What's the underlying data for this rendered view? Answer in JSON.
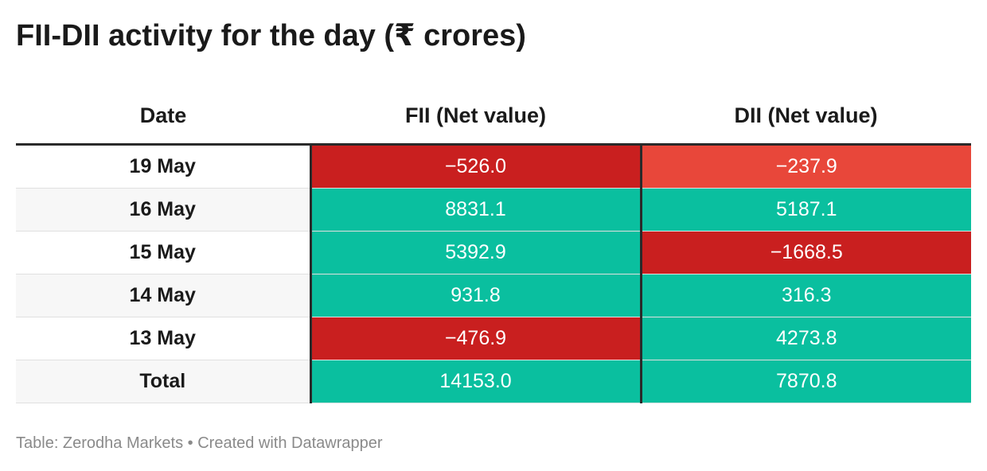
{
  "title": "FII-DII activity for the day (₹ crores)",
  "footer": "Table: Zerodha Markets • Created with Datawrapper",
  "colors": {
    "positive": "#0abf9f",
    "negative_strong": "#c91f1f",
    "negative_light": "#e8473a"
  },
  "chart_data": {
    "type": "table",
    "title": "FII-DII activity for the day (₹ crores)",
    "columns": [
      "Date",
      "FII (Net value)",
      "DII (Net value)"
    ],
    "rows": [
      {
        "date": "19 May",
        "fii": "−526.0",
        "dii": "−237.9",
        "fii_value": -526.0,
        "dii_value": -237.9
      },
      {
        "date": "16 May",
        "fii": "8831.1",
        "dii": "5187.1",
        "fii_value": 8831.1,
        "dii_value": 5187.1
      },
      {
        "date": "15 May",
        "fii": "5392.9",
        "dii": "−1668.5",
        "fii_value": 5392.9,
        "dii_value": -1668.5
      },
      {
        "date": "14 May",
        "fii": "931.8",
        "dii": "316.3",
        "fii_value": 931.8,
        "dii_value": 316.3
      },
      {
        "date": "13 May",
        "fii": "−476.9",
        "dii": "4273.8",
        "fii_value": -476.9,
        "dii_value": 4273.8
      },
      {
        "date": "Total",
        "fii": "14153.0",
        "dii": "7870.8",
        "fii_value": 14153.0,
        "dii_value": 7870.8
      }
    ],
    "source": "Zerodha Markets"
  }
}
